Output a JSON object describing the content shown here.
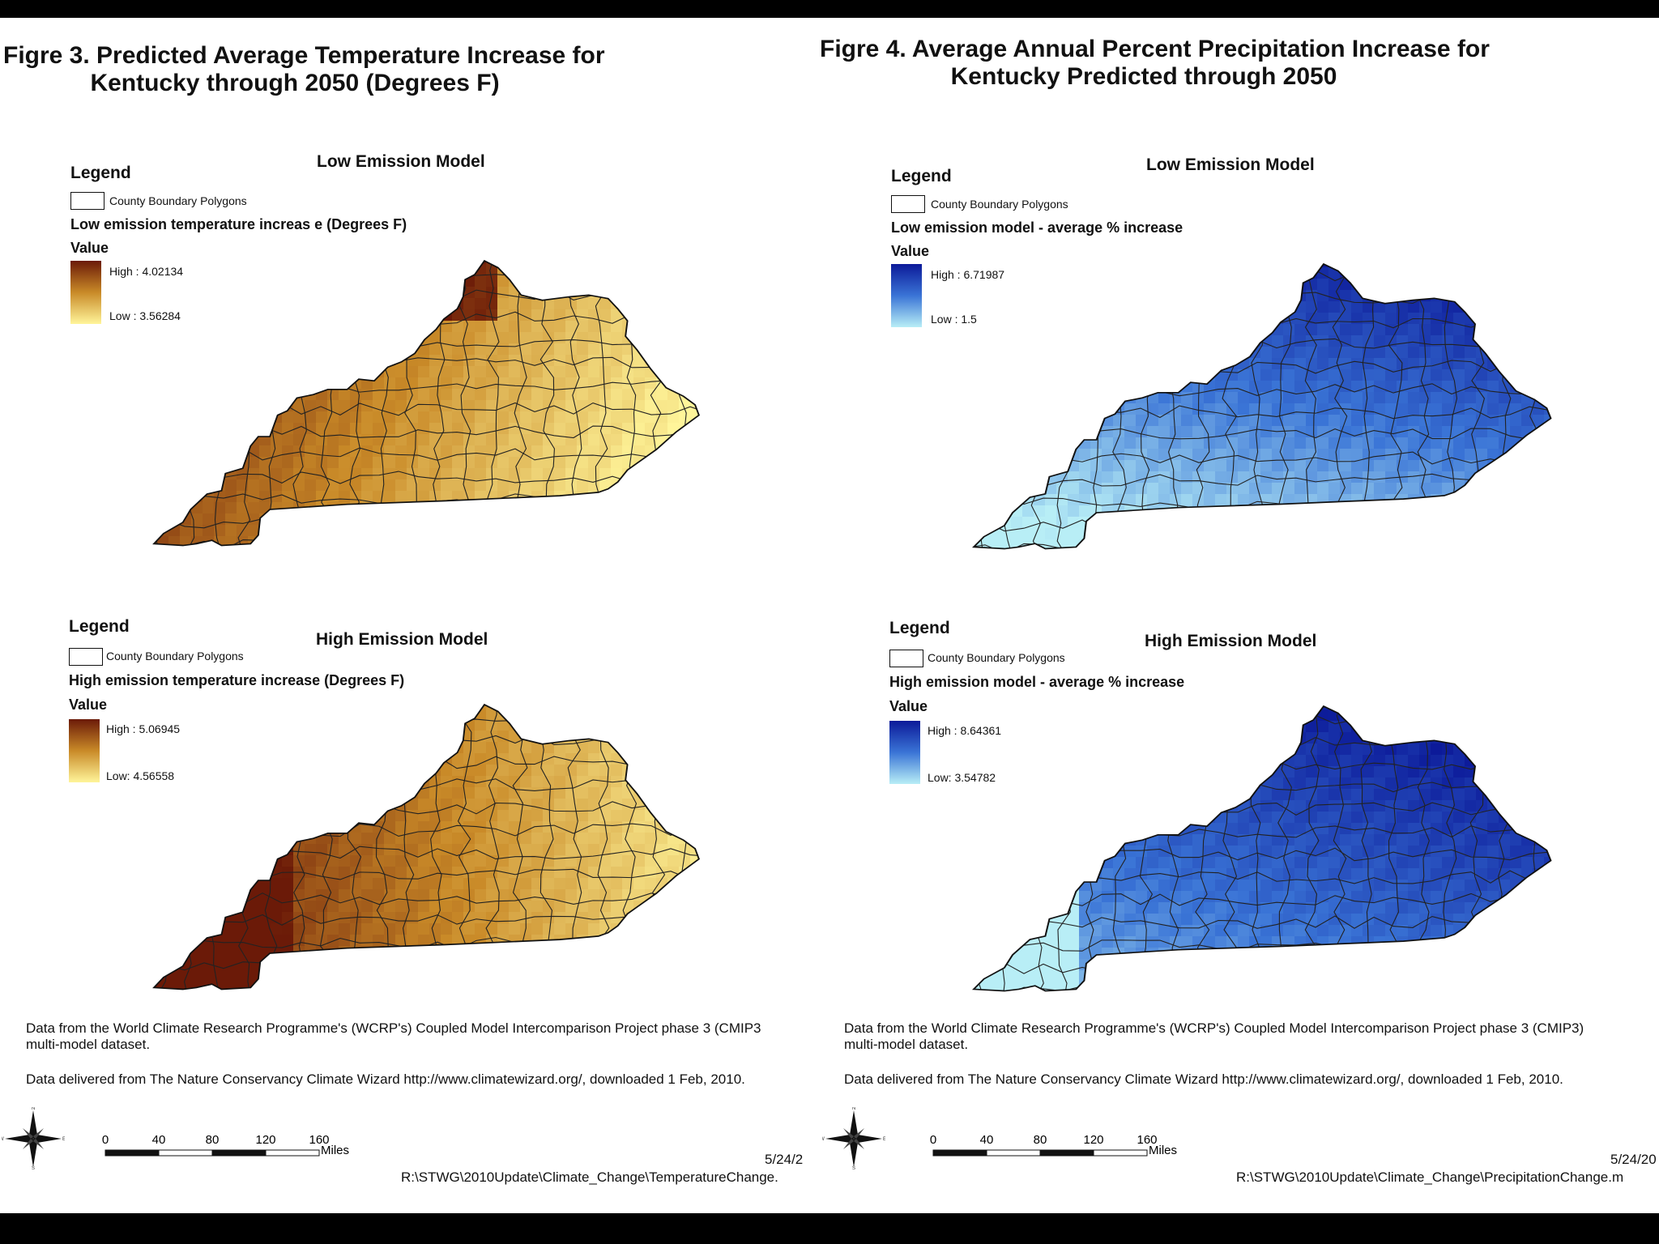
{
  "colors": {
    "temp_high": "#6b1a08",
    "temp_mid": "#c98a28",
    "temp_low": "#fff59a",
    "precip_high": "#0c1a99",
    "precip_mid": "#3a74d6",
    "precip_low": "#b8eef6"
  },
  "icons": {
    "north_arrow": "compass-rose-icon",
    "county_box": "empty-rectangle-icon"
  },
  "left": {
    "figure_title_line1": "Figre 3. Predicted Average Temperature Increase for",
    "figure_title_line2": "Kentucky through 2050 (Degrees F)",
    "low": {
      "legend": "Legend",
      "model_title": "Low Emission Model",
      "county_label": "County Boundary Polygons",
      "field": "Low emission temperature increas e (Degrees F)",
      "value_label": "Value",
      "high": "High : 4.02134",
      "low": "Low : 3.56284"
    },
    "high": {
      "legend": "Legend",
      "model_title": "High Emission Model",
      "county_label": "County Boundary Polygons",
      "field": "High emission temperature increase (Degrees F)",
      "value_label": "Value",
      "high": "High : 5.06945",
      "low": "Low: 4.56558"
    },
    "note1_line1": "Data from the World Climate Research Programme's (WCRP's) Coupled Model Intercomparison Project phase 3 (CMIP3",
    "note1_line2": "multi-model dataset.",
    "note2": "Data delivered from The Nature Conservancy Climate Wizard http://www.climatewizard.org/, downloaded 1 Feb, 2010.",
    "date": "5/24/2",
    "path": "R:\\STWG\\2010Update\\Climate_Change\\TemperatureChange."
  },
  "right": {
    "figure_title_line1": "Figre 4.  Average Annual Percent Precipitation Increase for",
    "figure_title_line2": "Kentucky Predicted through 2050",
    "low": {
      "legend": "Legend",
      "model_title": "Low Emission Model",
      "county_label": "County Boundary Polygons",
      "field": "Low emission model -  average  % increase",
      "value_label": "Value",
      "high": "High : 6.71987",
      "low": "Low : 1.5"
    },
    "high": {
      "legend": "Legend",
      "model_title": "High Emission Model",
      "county_label": "County Boundary Polygons",
      "field": "High emission model - average % increase",
      "value_label": "Value",
      "high": "High : 8.64361",
      "low": "Low: 3.54782"
    },
    "note1_line1": "Data from the World Climate Research Programme's (WCRP's) Coupled Model Intercomparison Project phase 3 (CMIP3)",
    "note1_line2": "multi-model dataset.",
    "note2": "Data delivered from The Nature Conservancy Climate Wizard http://www.climatewizard.org/, downloaded 1 Feb, 2010.",
    "date": "5/24/20",
    "path": "R:\\STWG\\2010Update\\Climate_Change\\PrecipitationChange.m"
  },
  "scale_bar": {
    "ticks": [
      "0",
      "40",
      "80",
      "120",
      "160"
    ],
    "unit": "Miles"
  },
  "compass": {
    "n": "N",
    "s": "S",
    "e": "E",
    "w": "W"
  }
}
